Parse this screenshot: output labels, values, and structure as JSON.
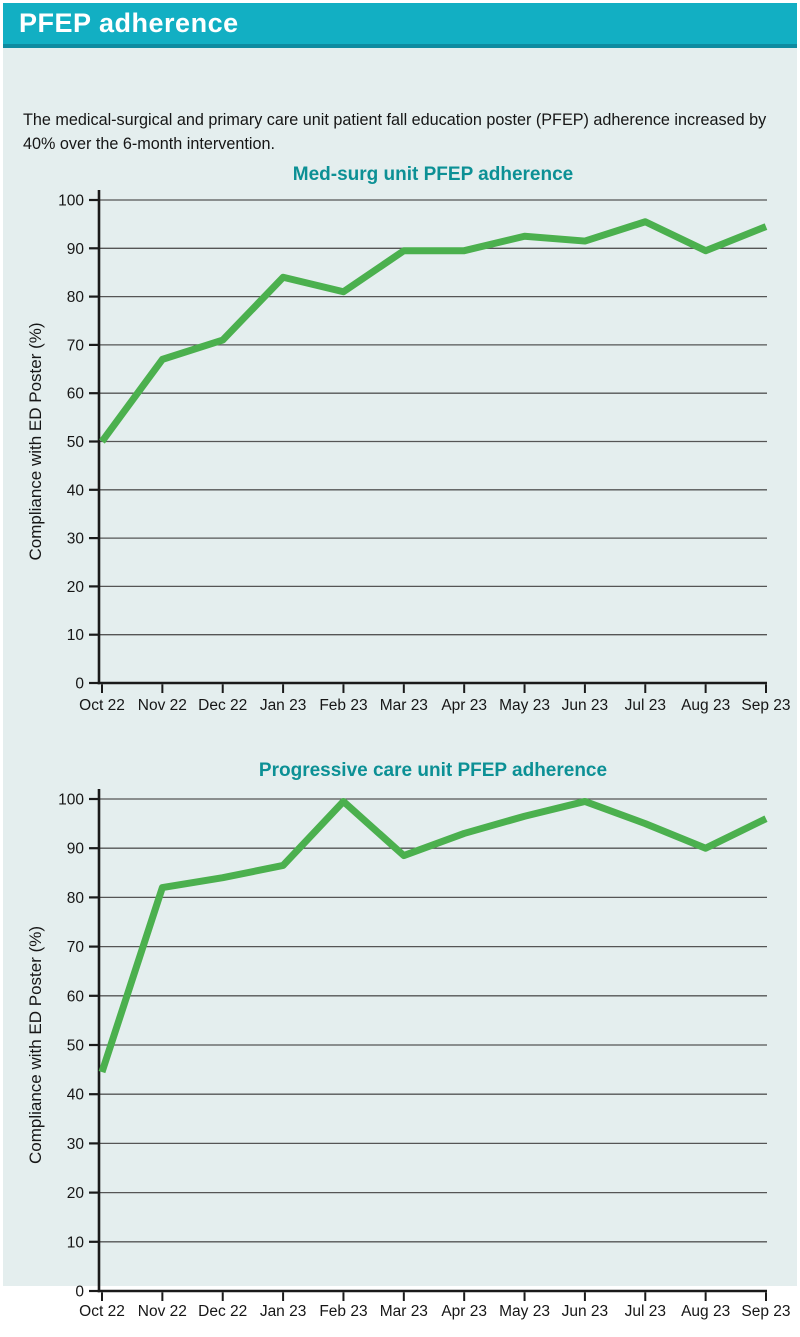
{
  "header": {
    "title": "PFEP adherence"
  },
  "caption": "The medical-surgical and primary care unit patient fall education poster (PFEP) adherence increased by 40% over the 6-month intervention.",
  "colors": {
    "header_bg": "#12afc3",
    "header_border": "#0e8ba0",
    "content_bg": "#e4eeee",
    "title_color": "#0c9095",
    "line_color": "#4bb04e",
    "grid_color": "#555555",
    "axis_color": "#1a1a1a",
    "text_color": "#161616"
  },
  "chart_data": [
    {
      "type": "line",
      "title": "Med-surg unit PFEP adherence",
      "xlabel": "",
      "ylabel": "Compliance with ED Poster (%)",
      "categories": [
        "Oct 22",
        "Nov 22",
        "Dec 22",
        "Jan 23",
        "Feb 23",
        "Mar 23",
        "Apr 23",
        "May 23",
        "Jun 23",
        "Jul 23",
        "Aug 23",
        "Sep 23"
      ],
      "values": [
        50,
        67,
        71,
        84,
        81,
        89.5,
        89.5,
        92.5,
        91.5,
        95.5,
        89.5,
        94.5
      ],
      "ylim": [
        0,
        100
      ],
      "ytick_step": 10,
      "grid": true,
      "legend": "none",
      "line_color": "#4bb04e"
    },
    {
      "type": "line",
      "title": "Progressive care unit PFEP adherence",
      "xlabel": "",
      "ylabel": "Compliance with ED Poster (%)",
      "categories": [
        "Oct 22",
        "Nov 22",
        "Dec 22",
        "Jan 23",
        "Feb 23",
        "Mar 23",
        "Apr 23",
        "May 23",
        "Jun 23",
        "Jul 23",
        "Aug 23",
        "Sep 23"
      ],
      "values": [
        44.5,
        82,
        84,
        86.5,
        99.5,
        88.5,
        93,
        96.5,
        99.5,
        95,
        90,
        96
      ],
      "ylim": [
        0,
        100
      ],
      "ytick_step": 10,
      "grid": true,
      "legend": "none",
      "line_color": "#4bb04e"
    }
  ]
}
